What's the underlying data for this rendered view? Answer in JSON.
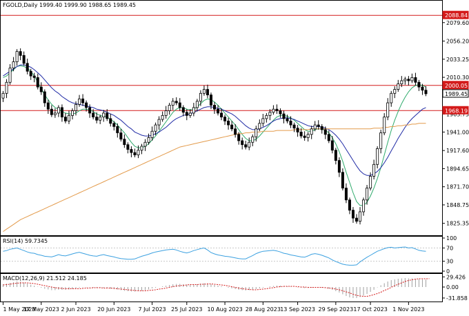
{
  "header": {
    "text": "FGOLD,Daily  1999.40 1999.90 1988.65 1989.45"
  },
  "colors": {
    "candle": "#000000",
    "ma_fast": "#2eaa6b",
    "ma_mid": "#1f2aa5",
    "ma_slow": "#e39a4a",
    "hline": "#d41a1a",
    "rsi": "#3aa0e0",
    "macd_hist": "#a0a0a0",
    "macd_signal": "#d41a1a"
  },
  "chart_data": [
    {
      "type": "candlestick",
      "title": "FGOLD,Daily  1999.40 1999.90 1988.65 1989.45",
      "ylim": [
        1812,
        2096
      ],
      "y_ticks": [
        "2079.60",
        "2056.20",
        "2033.25",
        "2010.30",
        "1987.35",
        "1963.75",
        "1941.00",
        "1917.60",
        "1894.65",
        "1871.70",
        "1848.75",
        "1825.35"
      ],
      "x_ticks": [
        "1 May 2023",
        "17 May 2023",
        "2 Jun 2023",
        "20 Jun 2023",
        "7 Jul 2023",
        "25 Jul 2023",
        "10 Aug 2023",
        "28 Aug 2023",
        "13 Sep 2023",
        "29 Sep 2023",
        "17 Oct 2023",
        "1 Nov 2023"
      ],
      "price_labels": [
        {
          "label": "2088.84",
          "value": 2088.84,
          "kind": "level"
        },
        {
          "label": "2000.05",
          "value": 2000.05,
          "kind": "level"
        },
        {
          "label": "1989.45",
          "value": 1989.45,
          "kind": "current"
        },
        {
          "label": "1968.19",
          "value": 1968.19,
          "kind": "level"
        }
      ],
      "close": [
        1990,
        2004,
        2022,
        2030,
        2043,
        2038,
        2028,
        2018,
        2012,
        2010,
        1998,
        1992,
        1978,
        1970,
        1963,
        1965,
        1972,
        1960,
        1955,
        1962,
        1968,
        1976,
        1983,
        1978,
        1972,
        1965,
        1960,
        1956,
        1960,
        1965,
        1958,
        1952,
        1948,
        1940,
        1932,
        1925,
        1919,
        1915,
        1912,
        1918,
        1923,
        1928,
        1934,
        1942,
        1950,
        1957,
        1962,
        1968,
        1975,
        1980,
        1978,
        1972,
        1966,
        1962,
        1965,
        1972,
        1980,
        1990,
        1995,
        1988,
        1975,
        1970,
        1965,
        1960,
        1955,
        1950,
        1945,
        1938,
        1930,
        1925,
        1922,
        1928,
        1935,
        1945,
        1952,
        1958,
        1962,
        1966,
        1970,
        1968,
        1964,
        1958,
        1955,
        1950,
        1946,
        1941,
        1936,
        1934,
        1938,
        1945,
        1950,
        1948,
        1944,
        1938,
        1930,
        1918,
        1905,
        1890,
        1870,
        1855,
        1842,
        1832,
        1828,
        1840,
        1855,
        1870,
        1885,
        1900,
        1920,
        1940,
        1960,
        1978,
        1990,
        1995,
        2002,
        2006,
        2008,
        2006,
        2010,
        2004,
        1998,
        1994,
        1989.45
      ],
      "series": [
        {
          "name": "",
          "role": "ma_fast",
          "values": [
            2010,
            2012,
            2016,
            2020,
            2024,
            2025,
            2024,
            2022,
            2018,
            2012,
            2004,
            1996,
            1988,
            1982,
            1976,
            1972,
            1970,
            1967,
            1965,
            1964,
            1964,
            1965,
            1968,
            1970,
            1970,
            1969,
            1967,
            1964,
            1962,
            1961,
            1960,
            1957,
            1954,
            1950,
            1945,
            1940,
            1934,
            1928,
            1923,
            1921,
            1921,
            1923,
            1926,
            1931,
            1936,
            1942,
            1948,
            1954,
            1960,
            1966,
            1970,
            1972,
            1972,
            1970,
            1969,
            1970,
            1973,
            1977,
            1981,
            1983,
            1982,
            1979,
            1975,
            1970,
            1965,
            1960,
            1955,
            1950,
            1944,
            1938,
            1933,
            1930,
            1930,
            1932,
            1936,
            1941,
            1946,
            1951,
            1956,
            1960,
            1962,
            1962,
            1961,
            1959,
            1956,
            1952,
            1948,
            1944,
            1942,
            1942,
            1944,
            1945,
            1945,
            1943,
            1940,
            1934,
            1926,
            1916,
            1904,
            1890,
            1877,
            1864,
            1853,
            1848,
            1848,
            1852,
            1860,
            1870,
            1882,
            1896,
            1912,
            1928,
            1943,
            1956,
            1967,
            1977,
            1985,
            1992,
            1997,
            2000,
            2001,
            2000,
            1998
          ]
        },
        {
          "name": "",
          "role": "ma_mid",
          "values": [
            2012,
            2015,
            2018,
            2021,
            2024,
            2026,
            2026,
            2025,
            2023,
            2020,
            2016,
            2012,
            2007,
            2002,
            1997,
            1993,
            1990,
            1986,
            1983,
            1980,
            1978,
            1977,
            1976,
            1975,
            1974,
            1973,
            1972,
            1970,
            1969,
            1968,
            1966,
            1964,
            1962,
            1959,
            1956,
            1952,
            1948,
            1945,
            1941,
            1939,
            1937,
            1936,
            1936,
            1937,
            1939,
            1941,
            1944,
            1947,
            1951,
            1955,
            1958,
            1960,
            1962,
            1963,
            1964,
            1966,
            1968,
            1970,
            1972,
            1973,
            1973,
            1972,
            1971,
            1970,
            1968,
            1966,
            1964,
            1961,
            1957,
            1953,
            1949,
            1946,
            1944,
            1944,
            1945,
            1947,
            1949,
            1952,
            1955,
            1957,
            1958,
            1959,
            1959,
            1958,
            1957,
            1955,
            1953,
            1951,
            1949,
            1948,
            1948,
            1948,
            1947,
            1946,
            1944,
            1941,
            1937,
            1932,
            1926,
            1919,
            1912,
            1905,
            1898,
            1892,
            1888,
            1886,
            1886,
            1888,
            1891,
            1896,
            1902,
            1909,
            1917,
            1925,
            1933,
            1940,
            1947,
            1953,
            1958,
            1962,
            1966,
            1970,
            1972
          ]
        },
        {
          "name": "",
          "role": "ma_slow",
          "values": [
            1815,
            1818,
            1821,
            1824,
            1827,
            1830,
            1832,
            1834,
            1836,
            1838,
            1840,
            1842,
            1844,
            1846,
            1848,
            1850,
            1852,
            1854,
            1856,
            1858,
            1860,
            1862,
            1864,
            1866,
            1868,
            1870,
            1872,
            1874,
            1876,
            1878,
            1880,
            1882,
            1884,
            1886,
            1888,
            1890,
            1892,
            1894,
            1896,
            1898,
            1900,
            1902,
            1904,
            1906,
            1908,
            1910,
            1912,
            1914,
            1916,
            1918,
            1920,
            1922,
            1923,
            1924,
            1925,
            1926,
            1927,
            1928,
            1929,
            1930,
            1931,
            1932,
            1933,
            1934,
            1935,
            1936,
            1937,
            1938,
            1939,
            1939,
            1940,
            1940,
            1941,
            1941,
            1941,
            1942,
            1942,
            1942,
            1942,
            1943,
            1943,
            1943,
            1943,
            1943,
            1944,
            1944,
            1944,
            1944,
            1944,
            1945,
            1945,
            1945,
            1945,
            1945,
            1945,
            1945,
            1945,
            1945,
            1945,
            1945,
            1945,
            1945,
            1945,
            1945,
            1945,
            1945,
            1945,
            1946,
            1946,
            1946,
            1947,
            1947,
            1948,
            1948,
            1949,
            1949,
            1950,
            1950,
            1951,
            1951,
            1952,
            1952,
            1952
          ]
        }
      ]
    },
    {
      "type": "line",
      "title": "RSI(14) 59.7345",
      "ylim": [
        0,
        100
      ],
      "y_ticks": [
        "100",
        "70",
        "30",
        "0"
      ],
      "values": [
        60,
        62,
        66,
        68,
        70,
        66,
        62,
        58,
        55,
        54,
        50,
        48,
        45,
        44,
        43,
        46,
        50,
        47,
        46,
        49,
        52,
        55,
        57,
        54,
        51,
        48,
        46,
        45,
        48,
        50,
        47,
        45,
        43,
        40,
        38,
        37,
        36,
        36,
        37,
        41,
        45,
        48,
        51,
        55,
        58,
        60,
        62,
        64,
        65,
        66,
        64,
        60,
        57,
        55,
        58,
        62,
        65,
        68,
        70,
        64,
        56,
        52,
        49,
        47,
        45,
        44,
        42,
        40,
        38,
        37,
        37,
        42,
        47,
        53,
        57,
        60,
        61,
        62,
        63,
        61,
        58,
        54,
        52,
        49,
        47,
        45,
        43,
        42,
        46,
        51,
        53,
        51,
        48,
        44,
        40,
        34,
        29,
        25,
        21,
        19,
        18,
        18,
        19,
        28,
        35,
        42,
        48,
        54,
        60,
        64,
        68,
        71,
        72,
        70,
        71,
        72,
        73,
        70,
        71,
        67,
        63,
        61,
        60
      ]
    },
    {
      "type": "bar",
      "title": "MACD(12,26,9) 21.512 24.185",
      "y_ticks": [
        "29.426",
        "0.00",
        "-31.858"
      ],
      "ylim": [
        -38,
        34
      ],
      "values": [
        8,
        10,
        12,
        14,
        16,
        15,
        13,
        10,
        7,
        4,
        1,
        -2,
        -5,
        -7,
        -9,
        -9,
        -8,
        -8,
        -8,
        -7,
        -6,
        -4,
        -2,
        -1,
        -1,
        -1,
        -2,
        -3,
        -3,
        -3,
        -4,
        -5,
        -6,
        -7,
        -9,
        -11,
        -12,
        -13,
        -13,
        -12,
        -11,
        -9,
        -7,
        -4,
        -2,
        0,
        2,
        4,
        6,
        8,
        9,
        9,
        8,
        7,
        7,
        7,
        8,
        10,
        11,
        10,
        8,
        6,
        4,
        2,
        0,
        -2,
        -4,
        -6,
        -8,
        -9,
        -10,
        -9,
        -8,
        -6,
        -4,
        -2,
        0,
        2,
        3,
        4,
        4,
        3,
        2,
        1,
        0,
        -1,
        -2,
        -3,
        -3,
        -2,
        -1,
        -1,
        -2,
        -3,
        -5,
        -8,
        -12,
        -16,
        -21,
        -26,
        -30,
        -32,
        -32,
        -29,
        -25,
        -20,
        -14,
        -8,
        -1,
        5,
        11,
        16,
        20,
        22,
        24,
        25,
        26,
        25,
        25,
        24,
        23,
        22,
        21.5
      ],
      "signal": [
        6,
        7,
        8,
        10,
        11,
        12,
        12,
        12,
        11,
        10,
        8,
        6,
        4,
        2,
        0,
        -2,
        -3,
        -4,
        -5,
        -5,
        -5,
        -5,
        -5,
        -4,
        -3,
        -3,
        -2,
        -2,
        -2,
        -3,
        -3,
        -3,
        -4,
        -5,
        -6,
        -7,
        -8,
        -9,
        -10,
        -11,
        -11,
        -11,
        -10,
        -9,
        -8,
        -6,
        -5,
        -3,
        -1,
        1,
        3,
        4,
        5,
        6,
        7,
        7,
        7,
        8,
        8,
        9,
        9,
        8,
        7,
        6,
        5,
        3,
        1,
        -1,
        -3,
        -5,
        -6,
        -7,
        -8,
        -8,
        -7,
        -6,
        -5,
        -3,
        -2,
        0,
        1,
        2,
        2,
        2,
        2,
        1,
        0,
        0,
        -1,
        -1,
        -1,
        -1,
        -1,
        -2,
        -3,
        -4,
        -6,
        -8,
        -11,
        -14,
        -17,
        -21,
        -24,
        -26,
        -27,
        -27,
        -25,
        -22,
        -19,
        -15,
        -10,
        -6,
        -1,
        4,
        8,
        12,
        16,
        19,
        21,
        23,
        24,
        24,
        24,
        24.185
      ]
    }
  ]
}
